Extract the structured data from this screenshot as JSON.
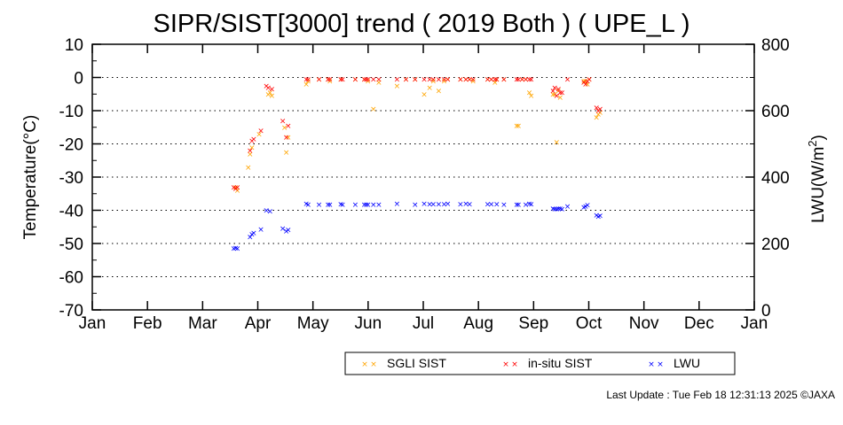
{
  "footer": "Last Update : Tue Feb 18 12:31:13 2025  ©JAXA",
  "chart_data": {
    "type": "scatter",
    "title": "SIPR/SIST[3000] trend ( 2019 Both ) ( UPE_L )",
    "ylabel": "Temperature(°C)",
    "y2label_main": "LWU(W/m",
    "y2label_sup": "2",
    "y2label_end": ")",
    "xlabel": "",
    "x_ticks": [
      "Jan",
      "Feb",
      "Mar",
      "Apr",
      "May",
      "Jun",
      "Jul",
      "Aug",
      "Sep",
      "Oct",
      "Nov",
      "Dec",
      "Jan"
    ],
    "y_ticks": [
      "10",
      "0",
      "-10",
      "-20",
      "-30",
      "-40",
      "-50",
      "-60",
      "-70"
    ],
    "y2_ticks": [
      "800",
      "600",
      "400",
      "200",
      "0"
    ],
    "ylim": [
      -70,
      10
    ],
    "y2lim": [
      0,
      800
    ],
    "grid": "horizontal dotted",
    "legend_placement": "bottom-right",
    "marker": "×",
    "series": [
      {
        "name": "SGLI SIST",
        "color": "#ffa500",
        "axis": "left",
        "points": [
          [
            "2019-03-21",
            -33
          ],
          [
            "2019-03-22",
            -34
          ],
          [
            "2019-03-28",
            -27
          ],
          [
            "2019-03-29",
            -23
          ],
          [
            "2019-03-30",
            -21
          ],
          [
            "2019-04-03",
            -17
          ],
          [
            "2019-04-08",
            -5
          ],
          [
            "2019-04-09",
            -4.5
          ],
          [
            "2019-04-10",
            -5.5
          ],
          [
            "2019-04-17",
            -15
          ],
          [
            "2019-04-18",
            -22.5
          ],
          [
            "2019-04-19",
            -18
          ],
          [
            "2019-04-29",
            -2
          ],
          [
            "2019-04-30",
            -1
          ],
          [
            "2019-05-06",
            -0.5
          ],
          [
            "2019-05-11",
            -0.5
          ],
          [
            "2019-05-12",
            -1
          ],
          [
            "2019-05-18",
            -0.5
          ],
          [
            "2019-05-26",
            -0.5
          ],
          [
            "2019-05-31",
            -0.5
          ],
          [
            "2019-06-02",
            -1
          ],
          [
            "2019-06-05",
            -9.5
          ],
          [
            "2019-06-08",
            -1.5
          ],
          [
            "2019-06-18",
            -2.5
          ],
          [
            "2019-06-23",
            -0.5
          ],
          [
            "2019-06-28",
            -0.5
          ],
          [
            "2019-07-03",
            -5
          ],
          [
            "2019-07-06",
            -3
          ],
          [
            "2019-07-08",
            -1
          ],
          [
            "2019-07-11",
            -4
          ],
          [
            "2019-07-14",
            -1
          ],
          [
            "2019-07-16",
            -0.5
          ],
          [
            "2019-07-23",
            -0.5
          ],
          [
            "2019-07-26",
            -0.5
          ],
          [
            "2019-07-28",
            -0.5
          ],
          [
            "2019-07-30",
            -1
          ],
          [
            "2019-08-07",
            -0.5
          ],
          [
            "2019-08-09",
            -0.5
          ],
          [
            "2019-08-11",
            -1.5
          ],
          [
            "2019-08-12",
            -0.5
          ],
          [
            "2019-08-16",
            -0.5
          ],
          [
            "2019-08-23",
            -14.5
          ],
          [
            "2019-08-24",
            -14.5
          ],
          [
            "2019-08-26",
            -0.5
          ],
          [
            "2019-08-28",
            -0.5
          ],
          [
            "2019-08-30",
            -4.5
          ],
          [
            "2019-08-31",
            -5.5
          ],
          [
            "2019-09-12",
            -5
          ],
          [
            "2019-09-13",
            -5
          ],
          [
            "2019-09-14",
            -19.5
          ],
          [
            "2019-09-15",
            -4
          ],
          [
            "2019-09-16",
            -6
          ],
          [
            "2019-09-29",
            -1
          ],
          [
            "2019-09-30",
            -1
          ],
          [
            "2019-10-01",
            -2
          ],
          [
            "2019-10-02",
            -0.5
          ],
          [
            "2019-10-06",
            -12
          ],
          [
            "2019-10-07",
            -11
          ],
          [
            "2019-10-08",
            -10.5
          ]
        ]
      },
      {
        "name": "in-situ SIST",
        "color": "#ff0000",
        "axis": "left",
        "points": [
          [
            "2019-03-20",
            -33
          ],
          [
            "2019-03-21",
            -33.5
          ],
          [
            "2019-03-22",
            -33
          ],
          [
            "2019-03-29",
            -22
          ],
          [
            "2019-03-30",
            -19
          ],
          [
            "2019-03-31",
            -18.5
          ],
          [
            "2019-04-04",
            -16
          ],
          [
            "2019-04-07",
            -2.5
          ],
          [
            "2019-04-08",
            -3
          ],
          [
            "2019-04-10",
            -3.5
          ],
          [
            "2019-04-16",
            -13
          ],
          [
            "2019-04-18",
            -18
          ],
          [
            "2019-04-19",
            -14.5
          ],
          [
            "2019-04-29",
            -0.5
          ],
          [
            "2019-04-30",
            -0.5
          ],
          [
            "2019-05-06",
            -0.5
          ],
          [
            "2019-05-11",
            -0.5
          ],
          [
            "2019-05-12",
            -0.5
          ],
          [
            "2019-05-18",
            -0.5
          ],
          [
            "2019-05-19",
            -0.5
          ],
          [
            "2019-05-26",
            -0.5
          ],
          [
            "2019-05-31",
            -0.5
          ],
          [
            "2019-06-01",
            -0.5
          ],
          [
            "2019-06-02",
            -0.5
          ],
          [
            "2019-06-05",
            -0.5
          ],
          [
            "2019-06-08",
            -0.5
          ],
          [
            "2019-06-18",
            -0.5
          ],
          [
            "2019-06-23",
            -0.5
          ],
          [
            "2019-06-28",
            -0.5
          ],
          [
            "2019-07-03",
            -0.5
          ],
          [
            "2019-07-06",
            -0.5
          ],
          [
            "2019-07-08",
            -0.5
          ],
          [
            "2019-07-11",
            -0.5
          ],
          [
            "2019-07-14",
            -0.5
          ],
          [
            "2019-07-16",
            -0.5
          ],
          [
            "2019-07-23",
            -0.5
          ],
          [
            "2019-07-26",
            -0.5
          ],
          [
            "2019-07-28",
            -0.5
          ],
          [
            "2019-07-30",
            -0.5
          ],
          [
            "2019-08-07",
            -0.5
          ],
          [
            "2019-08-09",
            -0.5
          ],
          [
            "2019-08-11",
            -0.5
          ],
          [
            "2019-08-12",
            -0.5
          ],
          [
            "2019-08-16",
            -0.5
          ],
          [
            "2019-08-23",
            -0.5
          ],
          [
            "2019-08-24",
            -0.5
          ],
          [
            "2019-08-26",
            -0.5
          ],
          [
            "2019-08-28",
            -0.5
          ],
          [
            "2019-08-30",
            -0.5
          ],
          [
            "2019-08-31",
            -0.5
          ],
          [
            "2019-09-12",
            -4
          ],
          [
            "2019-09-13",
            -3
          ],
          [
            "2019-09-14",
            -5.5
          ],
          [
            "2019-09-15",
            -3.5
          ],
          [
            "2019-09-16",
            -4.5
          ],
          [
            "2019-09-17",
            -4.5
          ],
          [
            "2019-09-20",
            -0.5
          ],
          [
            "2019-09-29",
            -1.5
          ],
          [
            "2019-09-30",
            -2
          ],
          [
            "2019-10-01",
            -1
          ],
          [
            "2019-10-02",
            -0.5
          ],
          [
            "2019-10-06",
            -9
          ],
          [
            "2019-10-07",
            -10
          ],
          [
            "2019-10-08",
            -9.5
          ]
        ]
      },
      {
        "name": "LWU",
        "color": "#0000ff",
        "axis": "right",
        "points": [
          [
            "2019-03-20",
            186
          ],
          [
            "2019-03-21",
            187
          ],
          [
            "2019-03-22",
            186
          ],
          [
            "2019-03-29",
            220
          ],
          [
            "2019-03-30",
            228
          ],
          [
            "2019-03-31",
            232
          ],
          [
            "2019-04-04",
            243
          ],
          [
            "2019-04-07",
            300
          ],
          [
            "2019-04-09",
            298
          ],
          [
            "2019-04-16",
            246
          ],
          [
            "2019-04-18",
            237
          ],
          [
            "2019-04-19",
            242
          ],
          [
            "2019-04-29",
            320
          ],
          [
            "2019-04-30",
            317
          ],
          [
            "2019-05-06",
            318
          ],
          [
            "2019-05-11",
            317
          ],
          [
            "2019-05-12",
            318
          ],
          [
            "2019-05-18",
            319
          ],
          [
            "2019-05-19",
            318
          ],
          [
            "2019-05-26",
            318
          ],
          [
            "2019-05-31",
            318
          ],
          [
            "2019-06-01",
            317
          ],
          [
            "2019-06-02",
            318
          ],
          [
            "2019-06-05",
            318
          ],
          [
            "2019-06-08",
            318
          ],
          [
            "2019-06-18",
            320
          ],
          [
            "2019-06-28",
            317
          ],
          [
            "2019-07-03",
            320
          ],
          [
            "2019-07-06",
            319
          ],
          [
            "2019-07-08",
            319
          ],
          [
            "2019-07-11",
            319
          ],
          [
            "2019-07-14",
            319
          ],
          [
            "2019-07-16",
            320
          ],
          [
            "2019-07-23",
            319
          ],
          [
            "2019-07-26",
            320
          ],
          [
            "2019-07-28",
            319
          ],
          [
            "2019-08-07",
            319
          ],
          [
            "2019-08-09",
            319
          ],
          [
            "2019-08-12",
            319
          ],
          [
            "2019-08-16",
            318
          ],
          [
            "2019-08-23",
            318
          ],
          [
            "2019-08-24",
            317
          ],
          [
            "2019-08-28",
            318
          ],
          [
            "2019-08-30",
            320
          ],
          [
            "2019-08-31",
            319
          ],
          [
            "2019-09-12",
            306
          ],
          [
            "2019-09-13",
            304
          ],
          [
            "2019-09-14",
            304
          ],
          [
            "2019-09-15",
            305
          ],
          [
            "2019-09-16",
            306
          ],
          [
            "2019-09-17",
            304
          ],
          [
            "2019-09-20",
            312
          ],
          [
            "2019-09-29",
            309
          ],
          [
            "2019-09-30",
            312
          ],
          [
            "2019-10-01",
            316
          ],
          [
            "2019-10-06",
            285
          ],
          [
            "2019-10-07",
            281
          ],
          [
            "2019-10-08",
            284
          ]
        ]
      }
    ]
  }
}
